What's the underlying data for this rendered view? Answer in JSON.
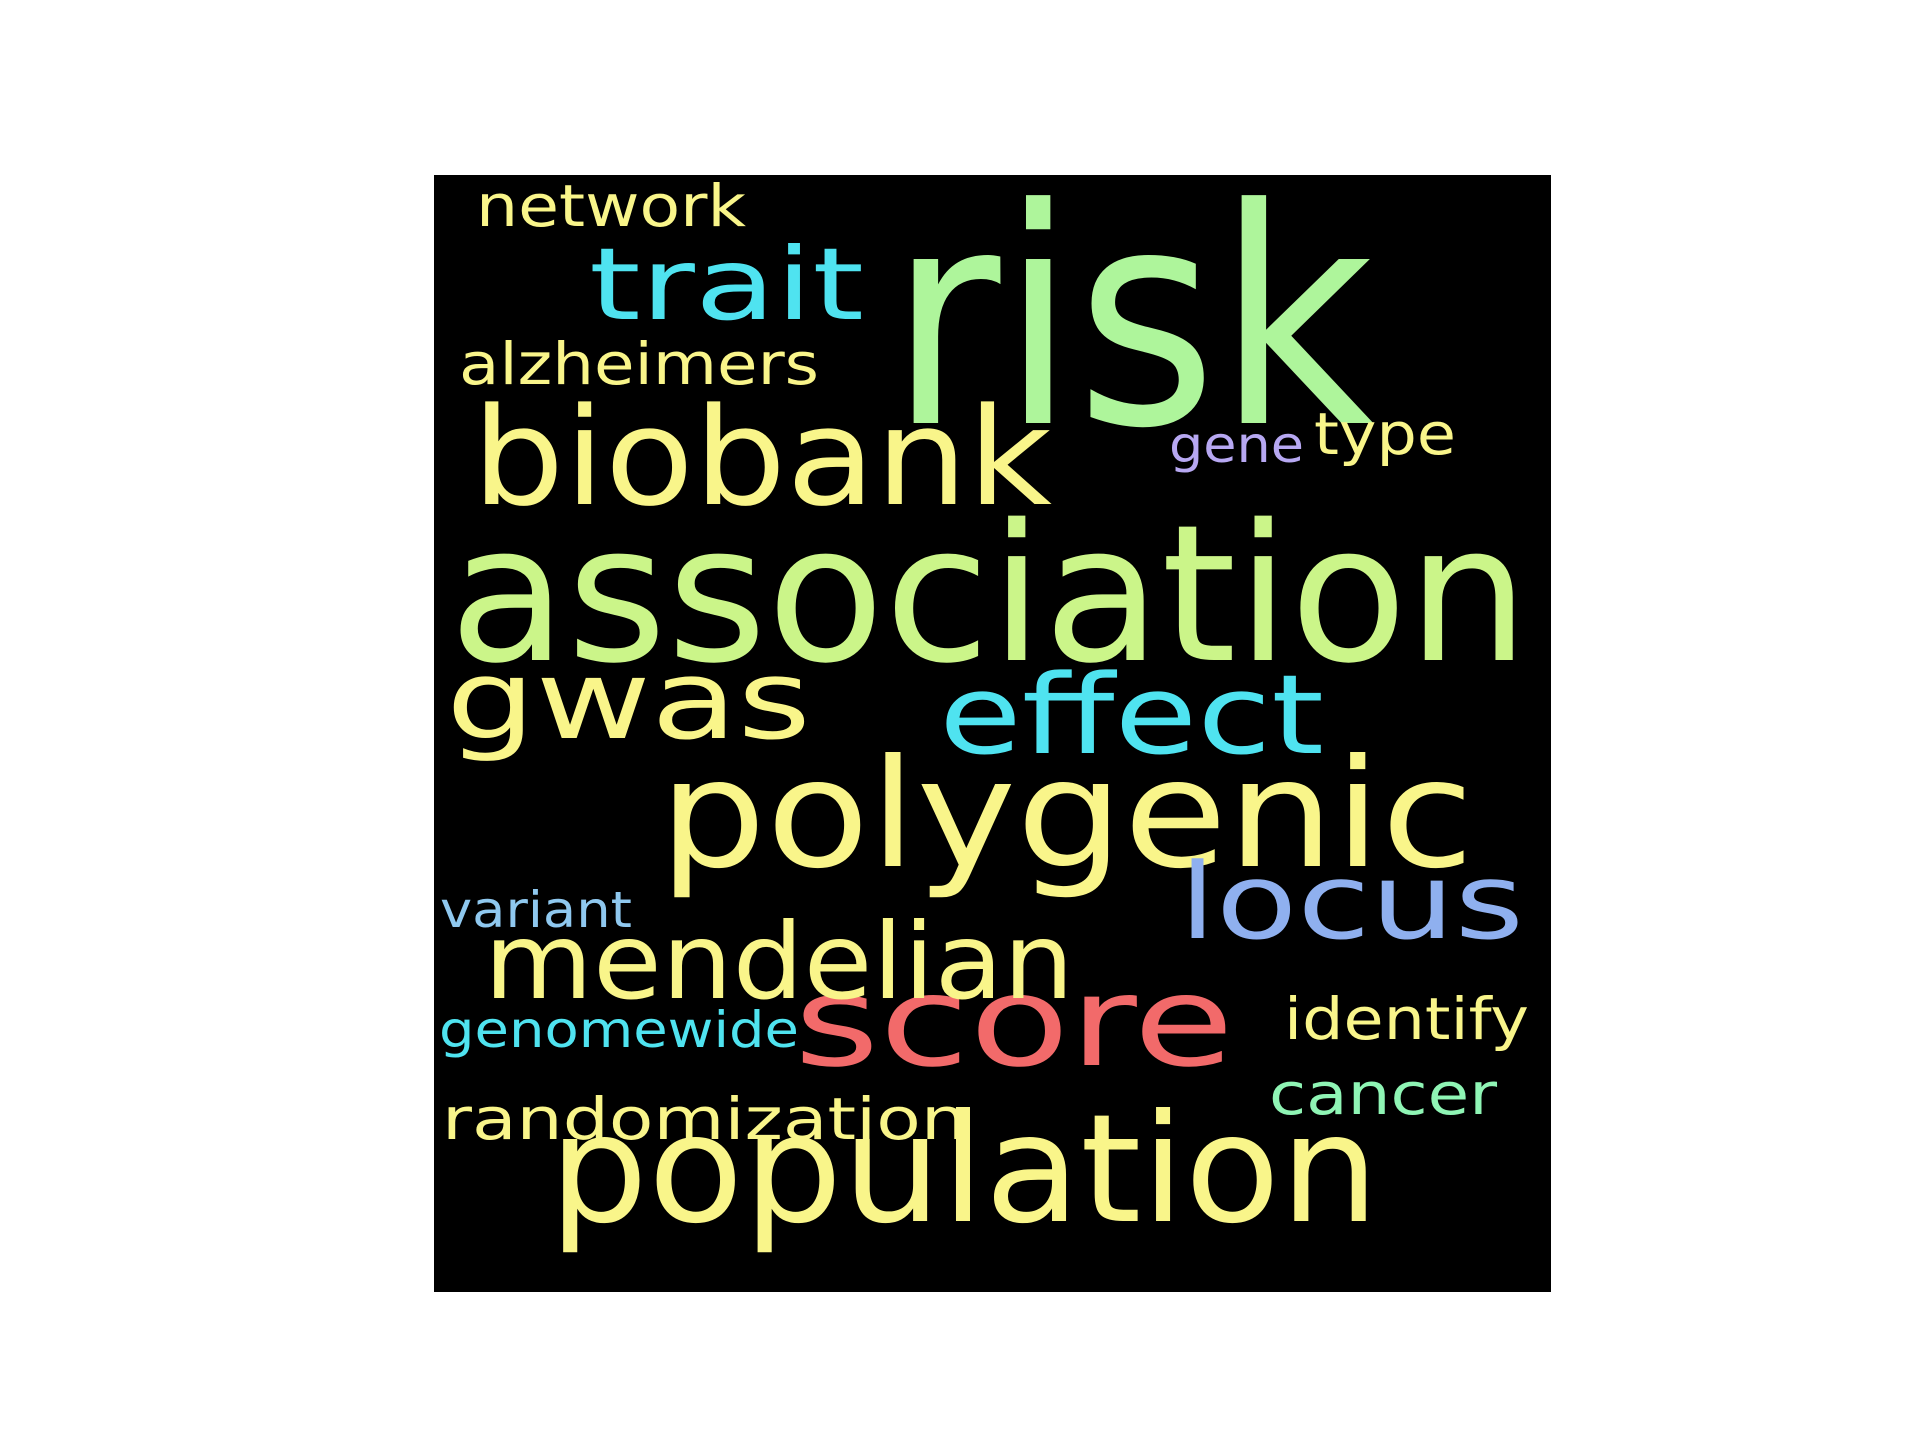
{
  "word_cloud": {
    "background_color": "#000000",
    "words": [
      {
        "text": "risk",
        "color": "#aef59b"
      },
      {
        "text": "association",
        "color": "#cbf589"
      },
      {
        "text": "polygenic",
        "color": "#f9f58a"
      },
      {
        "text": "population",
        "color": "#f9f58a"
      },
      {
        "text": "biobank",
        "color": "#f9f58a"
      },
      {
        "text": "score",
        "color": "#f26a6a"
      },
      {
        "text": "mendelian",
        "color": "#f9f58a"
      },
      {
        "text": "gwas",
        "color": "#f9f58a"
      },
      {
        "text": "effect",
        "color": "#4fe3f0"
      },
      {
        "text": "locus",
        "color": "#8fb0ef"
      },
      {
        "text": "trait",
        "color": "#4fe3f0"
      },
      {
        "text": "alzheimers",
        "color": "#f9f58a"
      },
      {
        "text": "randomization",
        "color": "#f9f58a"
      },
      {
        "text": "network",
        "color": "#f9f58a"
      },
      {
        "text": "identify",
        "color": "#f9f58a"
      },
      {
        "text": "cancer",
        "color": "#8ff5b5"
      },
      {
        "text": "type",
        "color": "#f9f58a"
      },
      {
        "text": "genomewide",
        "color": "#4fe3f0"
      },
      {
        "text": "variant",
        "color": "#8fc8ef"
      },
      {
        "text": "gene",
        "color": "#b7a8f2"
      }
    ]
  }
}
